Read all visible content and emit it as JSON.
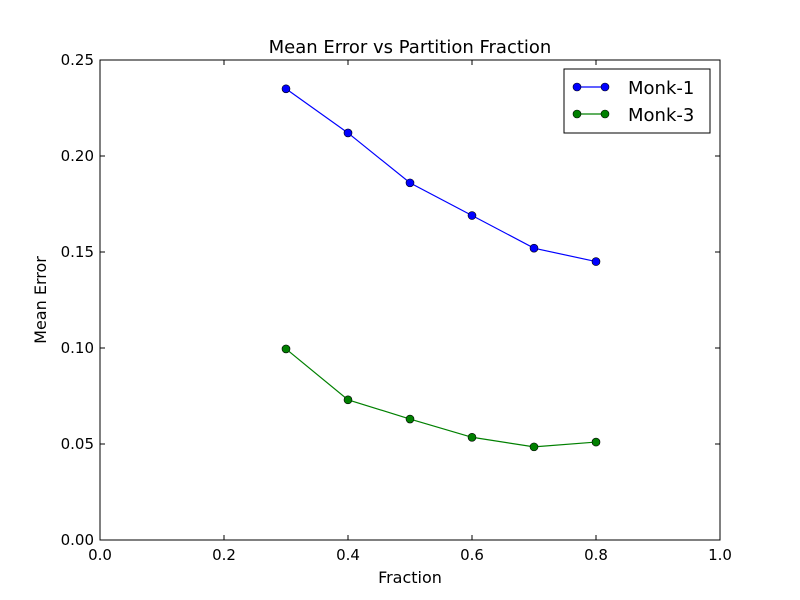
{
  "chart_data": {
    "type": "line",
    "title": "Mean Error vs Partition Fraction",
    "xlabel": "Fraction",
    "ylabel": "Mean Error",
    "xlim": [
      0.0,
      1.0
    ],
    "ylim": [
      0.0,
      0.25
    ],
    "xticks": [
      "0.0",
      "0.2",
      "0.4",
      "0.6",
      "0.8",
      "1.0"
    ],
    "yticks": [
      "0.00",
      "0.05",
      "0.10",
      "0.15",
      "0.20",
      "0.25"
    ],
    "grid": false,
    "legend_position": "top-right",
    "series": [
      {
        "name": "Monk-1",
        "color": "#0000ff",
        "x": [
          0.3,
          0.4,
          0.5,
          0.6,
          0.7,
          0.8
        ],
        "values": [
          0.235,
          0.212,
          0.186,
          0.169,
          0.152,
          0.145
        ]
      },
      {
        "name": "Monk-3",
        "color": "#008000",
        "x": [
          0.3,
          0.4,
          0.5,
          0.6,
          0.7,
          0.8
        ],
        "values": [
          0.0995,
          0.073,
          0.063,
          0.0535,
          0.0485,
          0.051
        ]
      }
    ]
  }
}
